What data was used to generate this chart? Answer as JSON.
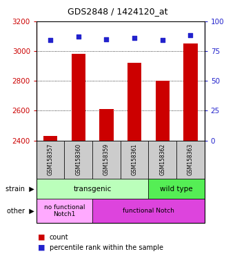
{
  "title": "GDS2848 / 1424120_at",
  "samples": [
    "GSM158357",
    "GSM158360",
    "GSM158359",
    "GSM158361",
    "GSM158362",
    "GSM158363"
  ],
  "counts": [
    2430,
    2980,
    2610,
    2920,
    2800,
    3050
  ],
  "percentiles": [
    84,
    87,
    85,
    86,
    84,
    88
  ],
  "ylim_left": [
    2400,
    3200
  ],
  "ylim_right": [
    0,
    100
  ],
  "yticks_left": [
    2400,
    2600,
    2800,
    3000,
    3200
  ],
  "yticks_right": [
    0,
    25,
    50,
    75,
    100
  ],
  "bar_color": "#cc0000",
  "dot_color": "#2222cc",
  "strain_groups": [
    {
      "label": "transgenic",
      "span": [
        0,
        4
      ],
      "color": "#bbffbb"
    },
    {
      "label": "wild type",
      "span": [
        4,
        6
      ],
      "color": "#55ee55"
    }
  ],
  "other_groups": [
    {
      "label": "no functional\nNotch1",
      "span": [
        0,
        2
      ],
      "color": "#ffaaff"
    },
    {
      "label": "functional Notch",
      "span": [
        2,
        6
      ],
      "color": "#dd44dd"
    }
  ],
  "tick_label_color_left": "#cc0000",
  "tick_label_color_right": "#2222cc",
  "grid_lines": [
    2600,
    2800,
    3000
  ],
  "bar_width": 0.5,
  "gray_box_color": "#cccccc",
  "sample_label_fontsize": 5.5,
  "annotation_fontsize": 8,
  "legend_fontsize": 7,
  "title_fontsize": 9
}
